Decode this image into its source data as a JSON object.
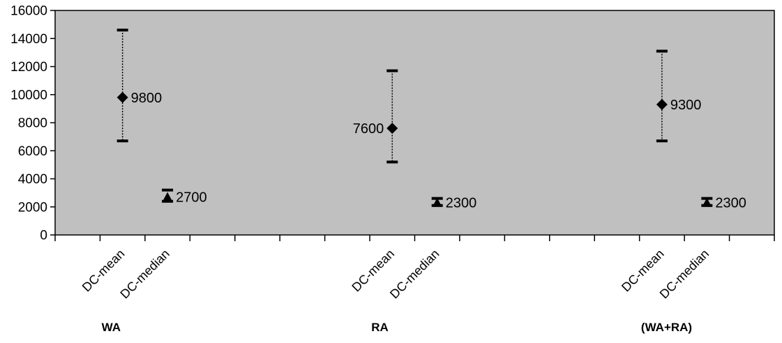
{
  "chart_data": {
    "type": "scatter",
    "title": "",
    "xlabel": "",
    "ylabel": "",
    "ylim": [
      0,
      16000
    ],
    "y_ticks": [
      "0",
      "2000",
      "4000",
      "6000",
      "8000",
      "10000",
      "12000",
      "14000",
      "16000"
    ],
    "grid": false,
    "plot_background": "#c0c0c0",
    "marker_color": "#000000",
    "groups": [
      {
        "name": "WA",
        "points": [
          {
            "category": "DC-mean",
            "marker": "diamond",
            "value": 9800,
            "label": "9800",
            "error_low": 6700,
            "error_high": 14600
          },
          {
            "category": "DC-median",
            "marker": "triangle",
            "value": 2700,
            "label": "2700",
            "error_low": 2400,
            "error_high": 3200
          }
        ]
      },
      {
        "name": "RA",
        "points": [
          {
            "category": "DC-mean",
            "marker": "diamond",
            "value": 7600,
            "label": "7600",
            "error_low": 5200,
            "error_high": 11700
          },
          {
            "category": "DC-median",
            "marker": "triangle",
            "value": 2300,
            "label": "2300",
            "error_low": 2100,
            "error_high": 2600
          }
        ]
      },
      {
        "name": "(WA+RA)",
        "points": [
          {
            "category": "DC-mean",
            "marker": "diamond",
            "value": 9300,
            "label": "9300",
            "error_low": 6700,
            "error_high": 13100
          },
          {
            "category": "DC-median",
            "marker": "triangle",
            "value": 2300,
            "label": "2300",
            "error_low": 2100,
            "error_high": 2600
          }
        ]
      }
    ]
  }
}
